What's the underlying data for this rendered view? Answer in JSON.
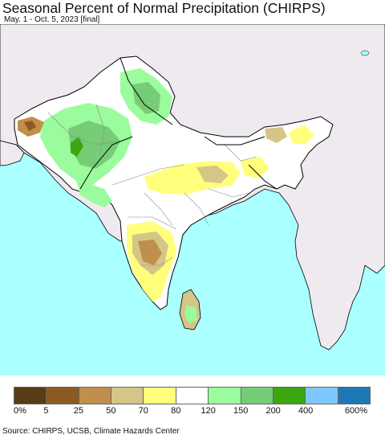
{
  "title": "Seasonal Percent of Normal Precipitation (CHIRPS)",
  "subtitle": "May. 1 - Oct. 5, 2023 [final]",
  "source": "Source: CHIRPS, UCSB, Climate Hazards Center",
  "colors": {
    "ocean": "#aaffff",
    "land_outside": "#efeaf0",
    "border": "#000000",
    "admin_border": "#888888"
  },
  "legend": {
    "colors": [
      "#5a3c14",
      "#8c5a23",
      "#c08f4c",
      "#d5c587",
      "#ffff7b",
      "#ffffff",
      "#9afc9c",
      "#77cc77",
      "#3aa80e",
      "#7ec8ff",
      "#1e78b5"
    ],
    "labels": [
      "0%",
      "5",
      "25",
      "50",
      "70",
      "80",
      "120",
      "150",
      "200",
      "400",
      "600%"
    ]
  }
}
